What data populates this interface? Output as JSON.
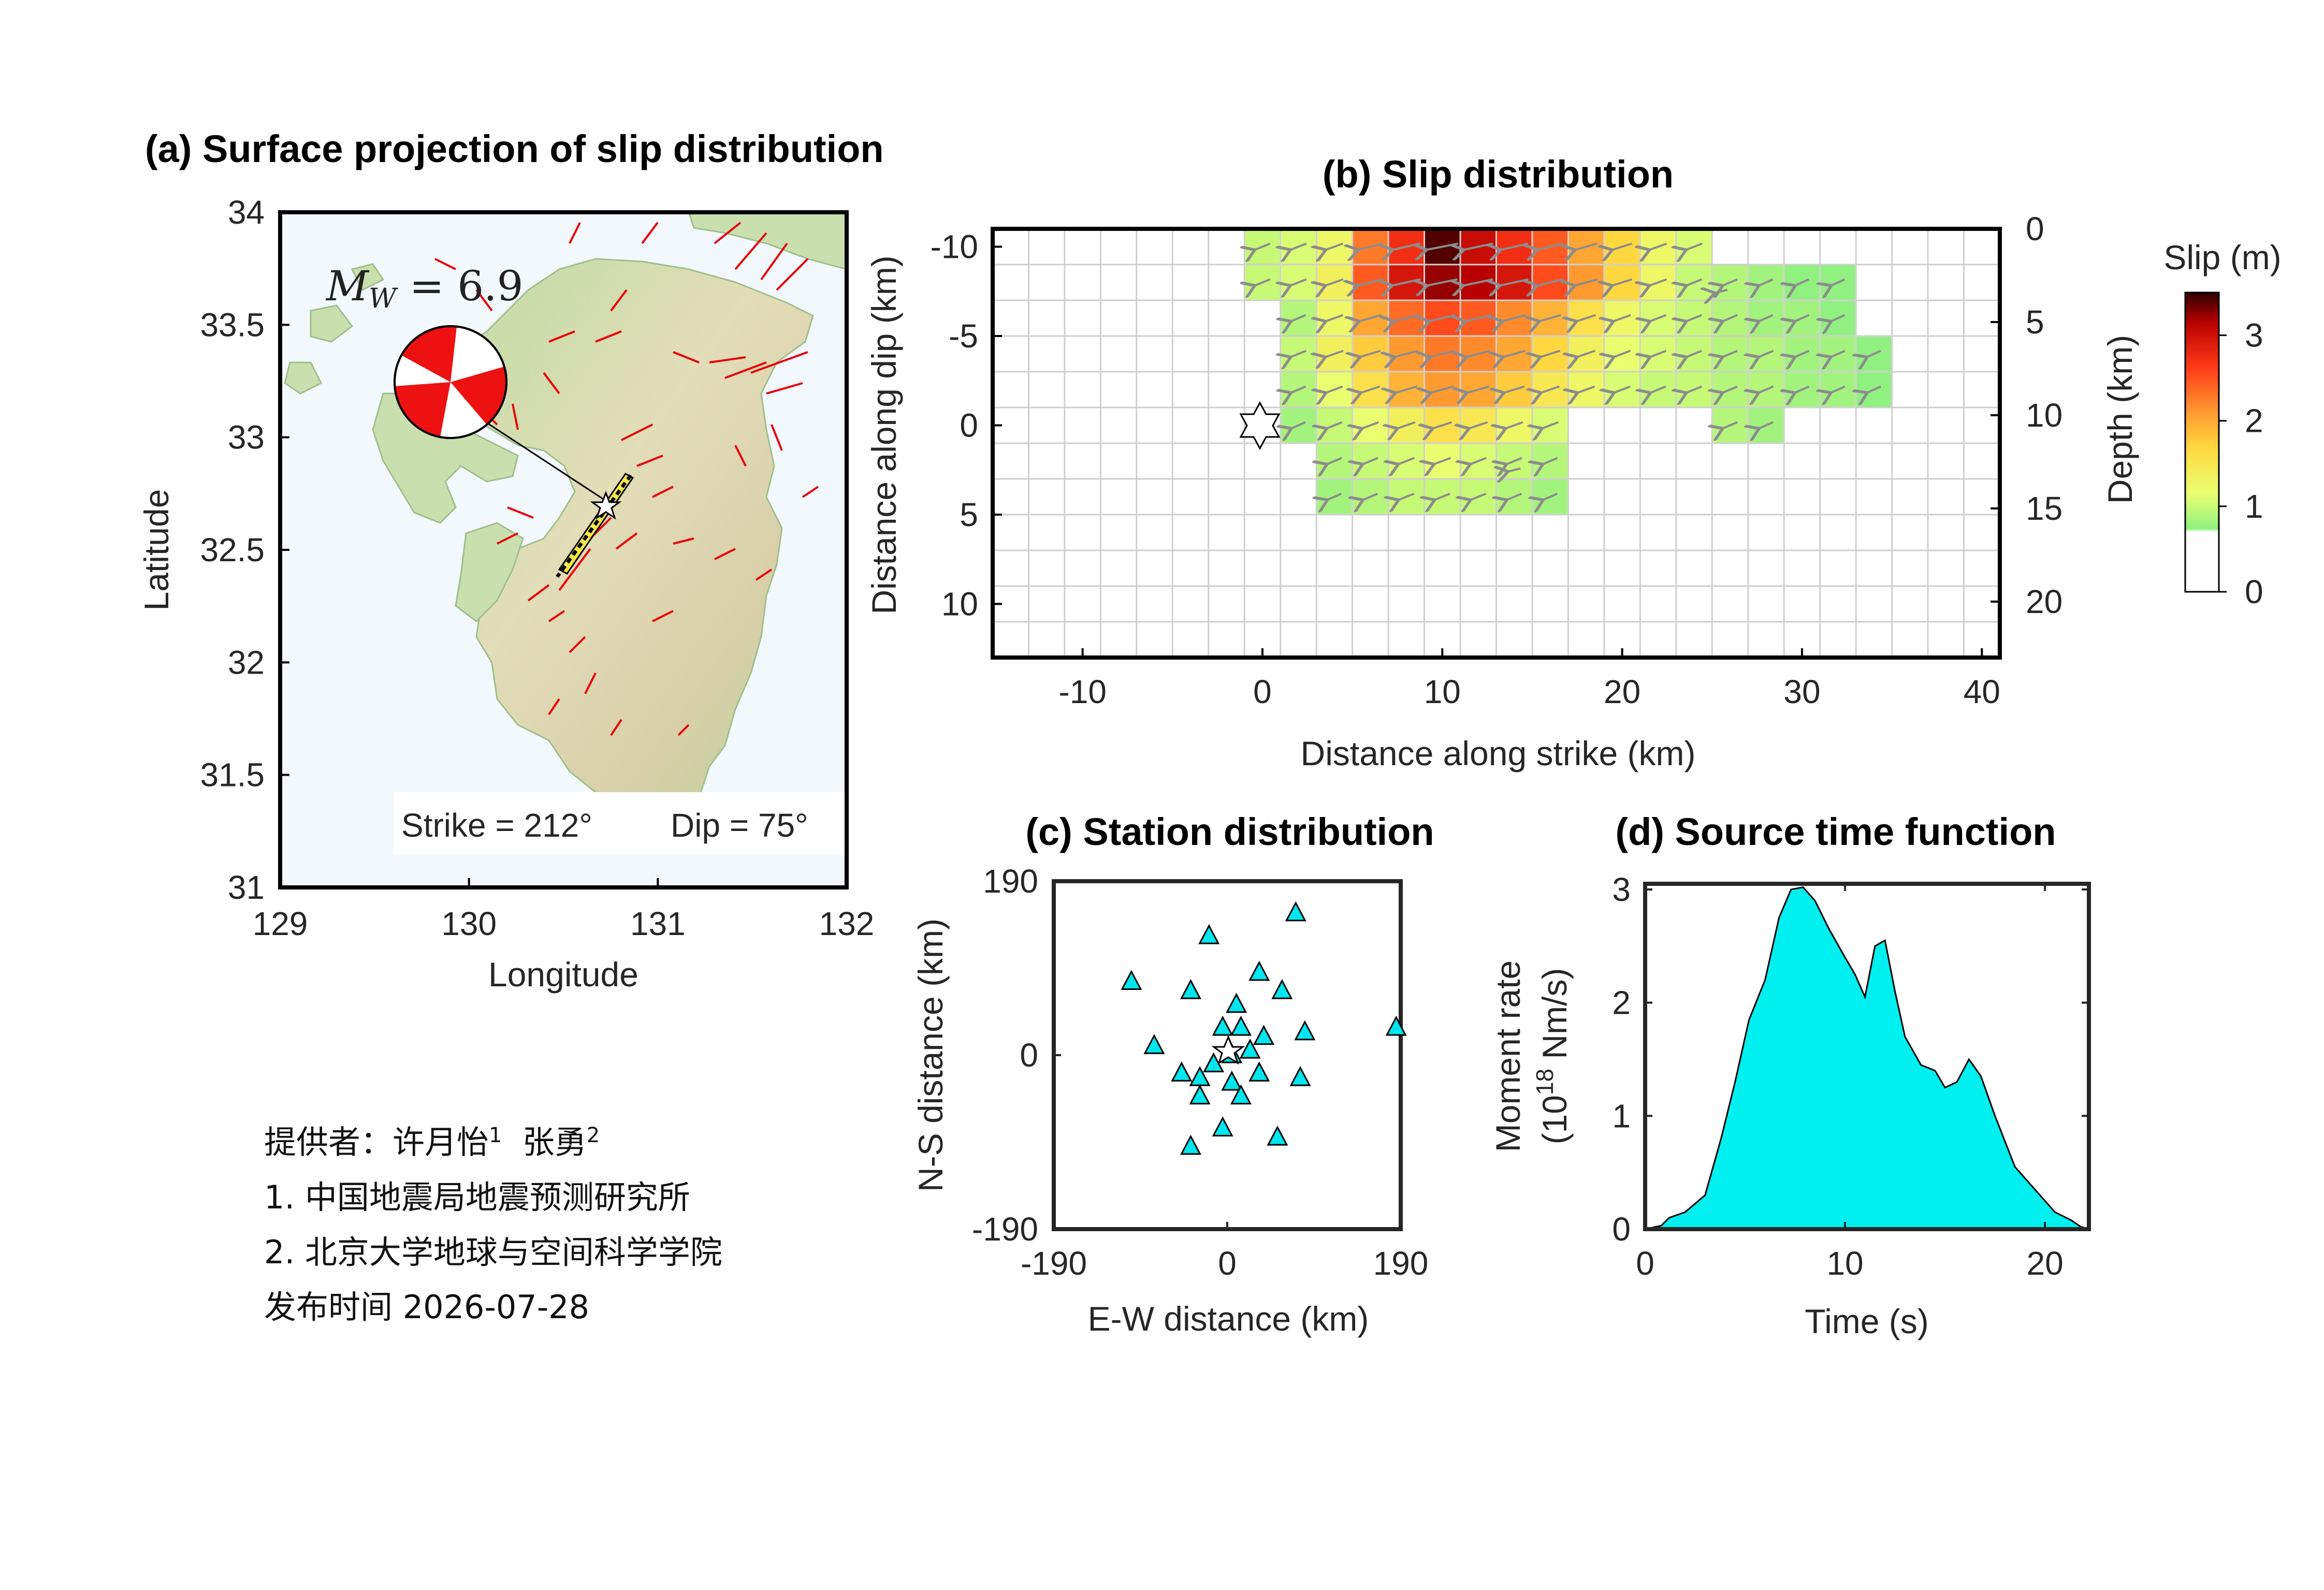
{
  "panels": {
    "a": {
      "title": "(a) Surface projection of slip distribution",
      "xlabel": "Longitude",
      "ylabel": "Latitude",
      "xticks": [
        "129",
        "130",
        "131",
        "132"
      ],
      "yticks": [
        "34",
        "33.5",
        "33",
        "32.5",
        "32",
        "31.5",
        "31"
      ],
      "magnitude_label": "M_W = 6.9",
      "strike_label": "Strike = 212°",
      "dip_label": "Dip = 75°",
      "xlim": [
        129,
        132
      ],
      "ylim": [
        31,
        34
      ]
    },
    "b": {
      "title": "(b) Slip distribution",
      "xlabel": "Distance along strike (km)",
      "ylabel": "Distance along dip (km)",
      "ylabel_right": "Depth (km)",
      "xticks": [
        "-10",
        "0",
        "10",
        "20",
        "30",
        "40"
      ],
      "yticks": [
        "-10",
        "-5",
        "0",
        "5",
        "10"
      ],
      "yticks_right": [
        "0",
        "5",
        "10",
        "15",
        "20"
      ],
      "colorbar_title": "Slip (m)",
      "colorbar_ticks": [
        "3",
        "2",
        "1",
        "0"
      ]
    },
    "c": {
      "title": "(c) Station distribution",
      "xlabel": "E-W distance (km)",
      "ylabel": "N-S distance (km)",
      "xticks": [
        "-190",
        "0",
        "190"
      ],
      "yticks": [
        "190",
        "0",
        "-190"
      ]
    },
    "d": {
      "title": "(d) Source time function",
      "xlabel": "Time (s)",
      "ylabel_line1": "Moment rate",
      "ylabel_line2": "(10^18 Nm/s)",
      "xticks": [
        "0",
        "10",
        "20"
      ],
      "yticks": [
        "3",
        "2",
        "1",
        "0"
      ]
    }
  },
  "credits": {
    "line1_prefix": "提供者：许月怡",
    "line1_sup1": "1",
    "line1_mid": "  张勇",
    "line1_sup2": "2",
    "line2": "1. 中国地震局地震预测研究所",
    "line3": "2. 北京大学地球与空间科学学院",
    "line4": "发布时间 2026-07-28"
  },
  "chart_data": [
    {
      "panel": "a",
      "type": "scatter",
      "title": "(a) Surface projection of slip distribution",
      "xlabel": "Longitude",
      "ylabel": "Latitude",
      "xlim": [
        129,
        132
      ],
      "ylim": [
        31,
        34
      ],
      "epicenter": {
        "lon": 130.76,
        "lat": 32.75
      },
      "beachball_anchor": {
        "lon": 129.9,
        "lat": 33.23
      },
      "fault_trace": [
        [
          130.86,
          32.82
        ],
        [
          130.5,
          32.43
        ]
      ],
      "magnitude": 6.9,
      "strike": 212,
      "dip": 75
    },
    {
      "panel": "b",
      "type": "heatmap",
      "title": "(b) Slip distribution",
      "xlabel": "Distance along strike (km)",
      "ylabel": "Distance along dip (km)",
      "xlim": [
        -15,
        41
      ],
      "ylim": [
        -11,
        13
      ],
      "depth_range": [
        0,
        20
      ],
      "cell_size_km": 2,
      "grid_x0": -1,
      "grid_y0": -11,
      "hypocenter": {
        "x": 0,
        "y": 0
      },
      "slip_columns_x_start": -1,
      "slip_rows_m": [
        [
          0.8,
          0.9,
          1.1,
          2.2,
          2.7,
          3.4,
          3.0,
          2.7,
          2.4,
          1.9,
          1.5,
          1.1,
          0.9
        ],
        [
          0.8,
          0.9,
          1.2,
          2.4,
          2.9,
          3.2,
          3.1,
          2.9,
          2.5,
          2.0,
          1.5,
          1.1,
          0.8,
          0.7,
          0.6,
          0.5,
          0.5
        ],
        [
          0.0,
          0.7,
          1.1,
          1.9,
          2.3,
          2.5,
          2.4,
          2.1,
          1.8,
          1.4,
          1.1,
          0.9,
          0.8,
          0.7,
          0.6,
          0.6,
          0.5
        ],
        [
          0.0,
          0.8,
          1.2,
          1.6,
          2.0,
          2.2,
          2.1,
          1.9,
          1.5,
          1.2,
          1.0,
          0.9,
          0.8,
          0.7,
          0.7,
          0.6,
          0.6,
          0.5
        ],
        [
          0.0,
          0.7,
          1.0,
          1.4,
          1.8,
          2.0,
          1.9,
          1.6,
          1.3,
          1.1,
          0.9,
          0.8,
          0.8,
          0.7,
          0.7,
          0.6,
          0.6,
          0.5
        ],
        [
          0.0,
          0.6,
          0.8,
          1.0,
          1.2,
          1.4,
          1.3,
          1.1,
          0.9,
          0.0,
          0.0,
          0.0,
          0.0,
          0.7,
          0.6
        ],
        [
          0.0,
          0.0,
          0.7,
          0.8,
          0.9,
          1.0,
          0.9,
          0.8,
          0.7
        ],
        [
          0.0,
          0.0,
          0.6,
          0.7,
          0.8,
          0.8,
          0.8,
          0.7,
          0.6
        ]
      ],
      "colorbar": {
        "title": "Slip (m)",
        "range": [
          0,
          3.5
        ],
        "ticks": [
          0,
          1,
          2,
          3
        ]
      }
    },
    {
      "panel": "c",
      "type": "scatter",
      "title": "(c) Station distribution",
      "xlabel": "E-W distance (km)",
      "ylabel": "N-S distance (km)",
      "xlim": [
        -190,
        190
      ],
      "ylim": [
        -190,
        190
      ],
      "epicenter": {
        "x": 0,
        "y": 0
      },
      "stations": [
        [
          75,
          155
        ],
        [
          -20,
          130
        ],
        [
          35,
          90
        ],
        [
          -105,
          80
        ],
        [
          -40,
          70
        ],
        [
          60,
          70
        ],
        [
          10,
          55
        ],
        [
          -5,
          30
        ],
        [
          15,
          30
        ],
        [
          40,
          20
        ],
        [
          85,
          25
        ],
        [
          185,
          30
        ],
        [
          -80,
          10
        ],
        [
          25,
          5
        ],
        [
          5,
          0
        ],
        [
          -15,
          -10
        ],
        [
          -50,
          -20
        ],
        [
          -30,
          -25
        ],
        [
          35,
          -20
        ],
        [
          80,
          -25
        ],
        [
          5,
          -30
        ],
        [
          -30,
          -45
        ],
        [
          15,
          -45
        ],
        [
          -5,
          -80
        ],
        [
          55,
          -90
        ],
        [
          -40,
          -100
        ]
      ]
    },
    {
      "panel": "d",
      "type": "area",
      "title": "(d) Source time function",
      "xlabel": "Time (s)",
      "ylabel": "Moment rate (10^18 Nm/s)",
      "xlim": [
        0,
        22.2
      ],
      "ylim": [
        0,
        3.05
      ],
      "x": [
        0,
        0.8,
        1.2,
        2,
        3,
        3.8,
        4.5,
        5.2,
        6,
        6.7,
        7.3,
        7.9,
        8.5,
        9.2,
        10,
        10.5,
        11,
        11.5,
        12,
        12.5,
        13,
        13.8,
        14.5,
        15,
        15.6,
        16.2,
        16.8,
        17.5,
        18.5,
        19.5,
        20.5,
        21.3,
        21.8,
        22.2
      ],
      "y": [
        0,
        0.03,
        0.1,
        0.15,
        0.3,
        0.8,
        1.3,
        1.85,
        2.2,
        2.75,
        3.0,
        3.02,
        2.9,
        2.65,
        2.4,
        2.25,
        2.05,
        2.5,
        2.55,
        2.1,
        1.7,
        1.45,
        1.4,
        1.25,
        1.3,
        1.5,
        1.35,
        1.0,
        0.55,
        0.35,
        0.15,
        0.08,
        0.02,
        0
      ]
    }
  ]
}
